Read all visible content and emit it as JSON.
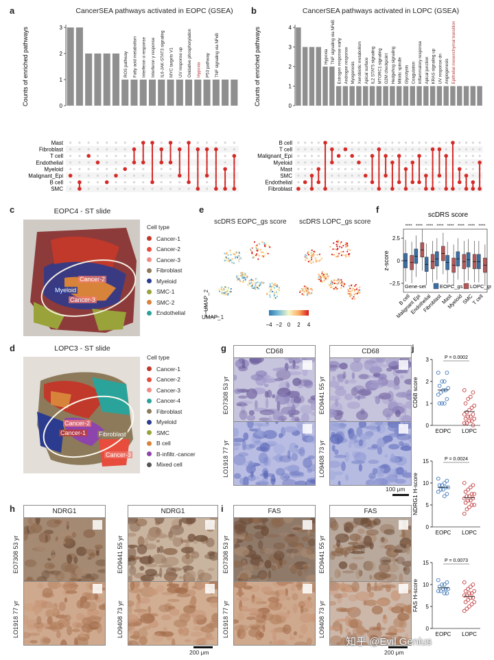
{
  "panel_labels": {
    "a": "a",
    "b": "b",
    "c": "c",
    "d": "d",
    "e": "e",
    "f": "f",
    "g": "g",
    "h": "h",
    "i": "i",
    "j": "j"
  },
  "chart_data": [
    {
      "panel": "a",
      "type": "bar",
      "title": "CancerSEA pathways activated in EOPC (GSEA)",
      "ylabel": "Counts of enriched pathways",
      "ylim": [
        0,
        3
      ],
      "values": [
        3,
        3,
        2,
        2,
        2,
        2,
        1,
        1,
        1,
        1,
        1,
        1,
        1,
        1,
        1,
        1,
        1,
        1,
        1
      ],
      "bar_labels": [
        "",
        "",
        "",
        "",
        "",
        "",
        "ROS pathway",
        "Fatty acid metabolism",
        "Interferon α response",
        "Interferon γ response",
        "IL6-JAK-STAT3 signaling",
        "MYC targets V1",
        "UV response up",
        "Oxidative phosphorylation",
        "Hypoxia",
        "P53 pathway",
        "TNF signaling via NFκB",
        "",
        ""
      ],
      "highlight_label": "Hypoxia",
      "highlight_color": "#b5373a",
      "matrix_rows": [
        "Mast",
        "Fibroblast",
        "T cell",
        "Endothelial",
        "Myeloid",
        "Malignant_Epi",
        "B cell",
        "SMC"
      ]
    },
    {
      "panel": "b",
      "type": "bar",
      "title": "CancerSEA pathways activated in LOPC (GSEA)",
      "ylabel": "Counts of enriched pathways",
      "ylim": [
        0,
        4
      ],
      "values": [
        4,
        3,
        3,
        3,
        2,
        2,
        1,
        1,
        1,
        1,
        1,
        1,
        1,
        1,
        1,
        1,
        1,
        1,
        1,
        1,
        1,
        1,
        1,
        1,
        1,
        1,
        1,
        1
      ],
      "bar_labels": [
        "",
        "",
        "",
        "",
        "Hypoxia",
        "TNF signaling via NFκB",
        "Estrogen response early",
        "Androgen response",
        "Myogenesis",
        "Xenobiotic metabolism",
        "Apical surface",
        "IL2 STAT5 signaling",
        "MTORC1 signaling",
        "G2M checkpoint",
        "Hedgehog signaling",
        "Mitotic spindle",
        "Glycolysis",
        "Coagulation",
        "Inflammatory response",
        "Apical junction",
        "KRAS signaling up",
        "UV response dn",
        "Angiogenesis",
        "Epithelial mesenchymal transition",
        "",
        "",
        "",
        ""
      ],
      "highlight_label": "Epithelial mesenchymal transition",
      "highlight_color": "#b5373a",
      "matrix_rows": [
        "B cell",
        "T cell",
        "Malignant_Epi",
        "Myeloid",
        "Mast",
        "SMC",
        "Endothelial",
        "Fibroblast"
      ]
    },
    {
      "panel": "f",
      "type": "box",
      "title": "scDRS score",
      "ylabel": "z-score",
      "categories": [
        "B cell",
        "Malignant Epi",
        "Endothelial",
        "Fibroblast",
        "Mast",
        "Myeloid",
        "SMC",
        "T cell"
      ],
      "significance": "****",
      "yticks": [
        "2.5",
        "0",
        "−2.5"
      ],
      "series": [
        {
          "name": "EOPC_gs",
          "color": "#3a6fa5",
          "medians": [
            0,
            0.5,
            -0.4,
            0.2,
            -0.2,
            0.2,
            0.1,
            -0.1
          ]
        },
        {
          "name": "LOPC_gs",
          "color": "#b5585a",
          "medians": [
            -0.2,
            1.2,
            -0.1,
            0.8,
            -0.5,
            -0.1,
            -0.1,
            -0.5
          ]
        }
      ],
      "legend_title": "Gene-set"
    },
    {
      "panel": "j",
      "type": "scatter",
      "charts": [
        {
          "ylabel": "CD68 score",
          "yticks": [
            "0",
            "1",
            "2",
            "3"
          ],
          "ymax": 3,
          "categories": [
            "EOPC",
            "LOPC"
          ],
          "p": "P = 0.0002",
          "EOPC": [
            2.4,
            2.4,
            2.0,
            2.0,
            1.8,
            1.7,
            1.6,
            1.6,
            1.5,
            1.4,
            1.2,
            1.0,
            1.0,
            1.0
          ],
          "LOPC": [
            1.6,
            1.5,
            1.3,
            1.2,
            1.0,
            0.9,
            0.8,
            0.7,
            0.6,
            0.5,
            0.5,
            0.4,
            0.4,
            0.3,
            0.3,
            0.2,
            0.2,
            0.1,
            0.1,
            0.0
          ]
        },
        {
          "ylabel": "NDRG1 H-score",
          "yticks": [
            "0",
            "5",
            "10",
            "15"
          ],
          "ymax": 15,
          "categories": [
            "EOPC",
            "LOPC"
          ],
          "p": "P = 0.0024",
          "EOPC": [
            11,
            10.5,
            10,
            9.5,
            9.5,
            9,
            9,
            8.5,
            8.5,
            8,
            7.5,
            7
          ],
          "LOPC": [
            10,
            9.5,
            9,
            8.5,
            8,
            7.5,
            7.5,
            7,
            7,
            6.5,
            6.5,
            6,
            6,
            5.5,
            5,
            5,
            4.5,
            4,
            3
          ]
        },
        {
          "ylabel": "FAS H-score",
          "yticks": [
            "0",
            "5",
            "10",
            "15"
          ],
          "ymax": 15,
          "categories": [
            "EOPC",
            "LOPC"
          ],
          "p": "P = 0.0073",
          "EOPC": [
            11,
            10.5,
            10,
            10,
            9.5,
            9,
            9,
            9,
            8.5,
            8.5,
            8,
            8
          ],
          "LOPC": [
            10.5,
            10,
            9.5,
            9,
            8.5,
            8.5,
            8,
            8,
            7.5,
            7.5,
            7,
            7,
            6.5,
            6,
            6,
            5.5,
            5,
            4.5,
            4
          ]
        }
      ],
      "colors": {
        "EOPC": "#3a74b5",
        "LOPC": "#c0393b"
      }
    }
  ],
  "panel_c": {
    "title": "EOPC4 - ST slide",
    "legend_title": "Cell type",
    "legend": [
      {
        "label": "Cancer-1",
        "color": "#c0392b"
      },
      {
        "label": "Cancer-2",
        "color": "#e74c3c"
      },
      {
        "label": "Cancer-3",
        "color": "#f08a84"
      },
      {
        "label": "Fibroblast",
        "color": "#8c7a5b"
      },
      {
        "label": "Myeloid",
        "color": "#2b3b8f"
      },
      {
        "label": "SMC-1",
        "color": "#9aa23a"
      },
      {
        "label": "SMC-2",
        "color": "#d8833a"
      },
      {
        "label": "Endothelial",
        "color": "#2aa39a"
      }
    ],
    "annotations": [
      "Cancer-2",
      "Myeloid",
      "Cancer-3"
    ]
  },
  "panel_d": {
    "title": "LOPC3 - ST slide",
    "legend_title": "Cell type",
    "legend": [
      {
        "label": "Cancer-1",
        "color": "#c0392b"
      },
      {
        "label": "Cancer-2",
        "color": "#e74c3c"
      },
      {
        "label": "Cancer-3",
        "color": "#f08a84"
      },
      {
        "label": "Cancer-4",
        "color": "#2aa39a"
      },
      {
        "label": "Fibroblast",
        "color": "#8c7a5b"
      },
      {
        "label": "Myeloid",
        "color": "#2b3b8f"
      },
      {
        "label": "SMC",
        "color": "#9aa23a"
      },
      {
        "label": "B cell",
        "color": "#d8833a"
      },
      {
        "label": "B-infiltr.-cancer",
        "color": "#8e44ad"
      },
      {
        "label": "Mixed cell",
        "color": "#555555"
      }
    ],
    "annotations": [
      "Cancer-2",
      "Cancer-1",
      "Fibroblast",
      "Cancer-3"
    ]
  },
  "panel_e": {
    "title_left": "scDRS EOPC_gs score",
    "title_right": "scDRS LOPC_gs score",
    "axis_x": "UMAP_1",
    "axis_y": "UMAP_2",
    "colorbar_ticks": [
      "−4",
      "−2",
      "0",
      "2",
      "4"
    ]
  },
  "panel_g": {
    "header_left": "CD68",
    "header_right": "CD68",
    "rows_left": [
      "EO7308 53 yr",
      "LO1918 77 yr"
    ],
    "rows_right": [
      "EO9441 55 yr",
      "LO9408 73 yr"
    ],
    "scale": "100 μm"
  },
  "panel_h": {
    "header_left": "NDRG1",
    "header_right": "NDRG1",
    "rows_left": [
      "EO7308 53 yr",
      "LO1918 77 yr"
    ],
    "rows_right": [
      "EO9441 55 yr",
      "LO9408 73 yr"
    ],
    "scale": "200 μm"
  },
  "panel_i": {
    "header_left": "FAS",
    "header_right": "FAS",
    "rows_left": [
      "EO7308 53 yr",
      "LO1918 77 yr"
    ],
    "rows_right": [
      "EO9441 55 yr",
      "LO9408 73 yr"
    ],
    "scale": "200 μm"
  },
  "watermark": "知乎 @Evil Genius"
}
